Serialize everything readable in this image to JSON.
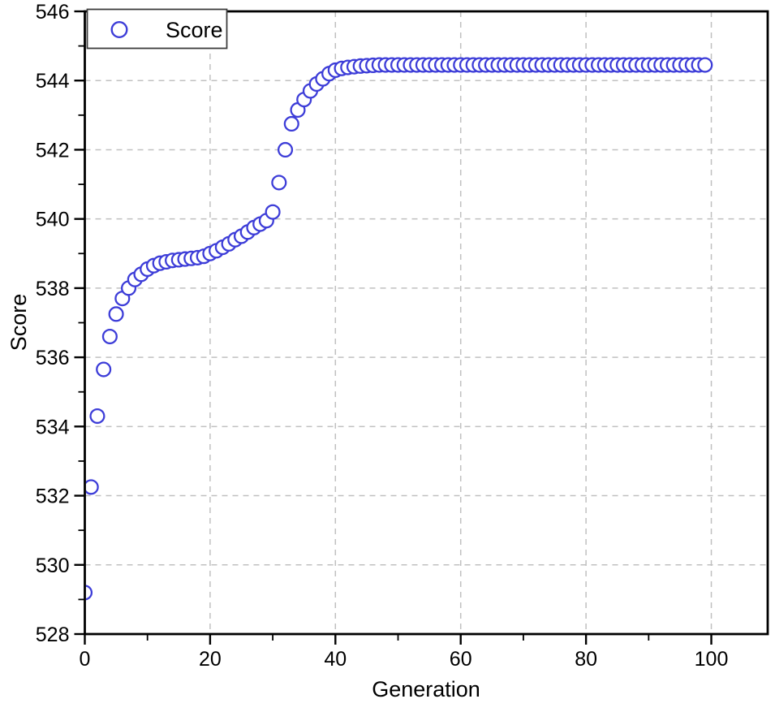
{
  "figure": {
    "background": "#ffffff"
  },
  "chart_data": {
    "type": "scatter",
    "title": "",
    "xlabel": "Generation",
    "ylabel": "Score",
    "xlim": [
      0,
      109
    ],
    "ylim": [
      528,
      546
    ],
    "xticks": [
      0,
      20,
      40,
      60,
      80,
      100
    ],
    "xminorticks": [
      10,
      30,
      50,
      70,
      90
    ],
    "yticks": [
      528,
      530,
      532,
      534,
      536,
      538,
      540,
      542,
      544,
      546
    ],
    "yminorticks": [
      529,
      531,
      533,
      535,
      537,
      539,
      541,
      543,
      545
    ],
    "xgrid": [
      20,
      40,
      60,
      80,
      100
    ],
    "ygrid": [
      530,
      532,
      534,
      536,
      538,
      540,
      542,
      544
    ],
    "grid": "dashed",
    "legend": {
      "label": "Score",
      "position": "top-left",
      "marker": "open-circle"
    },
    "colors": {
      "marker": "#3d3dd8",
      "marker_fill": "#ffffff",
      "grid": "#c0c0c0",
      "axis": "#000000",
      "text": "#000000",
      "legend_border": "#3c3c3c",
      "legend_fill": "#ffffff"
    },
    "series": [
      {
        "name": "Score",
        "marker": "open-circle",
        "color": "#3d3dd8",
        "x": [
          0,
          1,
          2,
          3,
          4,
          5,
          6,
          7,
          8,
          9,
          10,
          11,
          12,
          13,
          14,
          15,
          16,
          17,
          18,
          19,
          20,
          21,
          22,
          23,
          24,
          25,
          26,
          27,
          28,
          29,
          30,
          31,
          32,
          33,
          34,
          35,
          36,
          37,
          38,
          39,
          40,
          41,
          42,
          43,
          44,
          45,
          46,
          47,
          48,
          49,
          50,
          51,
          52,
          53,
          54,
          55,
          56,
          57,
          58,
          59,
          60,
          61,
          62,
          63,
          64,
          65,
          66,
          67,
          68,
          69,
          70,
          71,
          72,
          73,
          74,
          75,
          76,
          77,
          78,
          79,
          80,
          81,
          82,
          83,
          84,
          85,
          86,
          87,
          88,
          89,
          90,
          91,
          92,
          93,
          94,
          95,
          96,
          97,
          98,
          99
        ],
        "y": [
          529.2,
          532.25,
          534.3,
          535.65,
          536.6,
          537.25,
          537.7,
          538.0,
          538.25,
          538.4,
          538.55,
          538.65,
          538.72,
          538.76,
          538.8,
          538.82,
          538.84,
          538.86,
          538.88,
          538.92,
          539.0,
          539.08,
          539.18,
          539.28,
          539.4,
          539.5,
          539.62,
          539.75,
          539.85,
          539.95,
          540.2,
          541.05,
          542.0,
          542.75,
          543.15,
          543.45,
          543.7,
          543.9,
          544.05,
          544.2,
          544.3,
          544.35,
          544.38,
          544.4,
          544.42,
          544.43,
          544.44,
          544.45,
          544.45,
          544.45,
          544.45,
          544.45,
          544.45,
          544.45,
          544.45,
          544.45,
          544.45,
          544.45,
          544.45,
          544.45,
          544.45,
          544.45,
          544.45,
          544.45,
          544.45,
          544.45,
          544.45,
          544.45,
          544.45,
          544.45,
          544.45,
          544.45,
          544.45,
          544.45,
          544.45,
          544.45,
          544.45,
          544.45,
          544.45,
          544.45,
          544.45,
          544.45,
          544.45,
          544.45,
          544.45,
          544.45,
          544.45,
          544.45,
          544.45,
          544.45,
          544.45,
          544.45,
          544.45,
          544.45,
          544.45,
          544.45,
          544.45,
          544.45,
          544.45,
          544.45
        ]
      }
    ]
  }
}
